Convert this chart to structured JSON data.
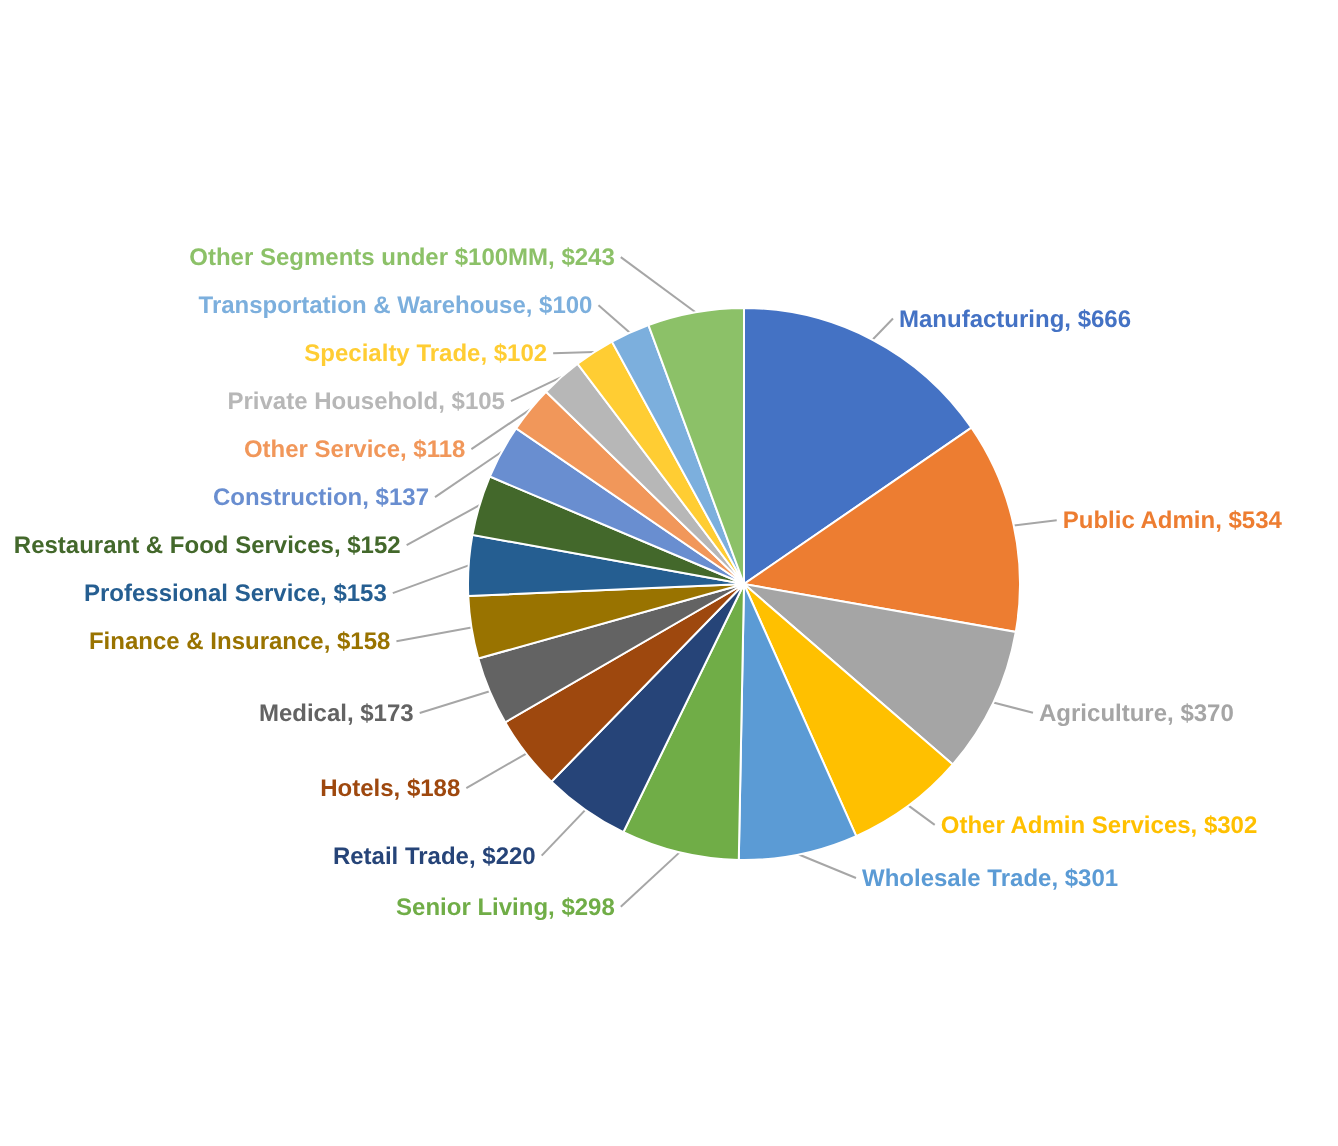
{
  "chart_data": {
    "type": "pie",
    "categories": [
      "Manufacturing",
      "Public Admin",
      "Agriculture",
      "Other Admin Services",
      "Wholesale Trade",
      "Senior Living",
      "Retail Trade",
      "Hotels",
      "Medical",
      "Finance & Insurance",
      "Professional Service",
      "Restaurant & Food Services",
      "Construction",
      "Other Service",
      "Private Household",
      "Specialty Trade",
      "Transportation & Warehouse",
      "Other Segments under $100MM"
    ],
    "values": [
      666,
      534,
      370,
      302,
      301,
      298,
      220,
      188,
      173,
      158,
      153,
      152,
      137,
      118,
      105,
      102,
      100,
      243
    ],
    "value_labels": [
      "$666",
      "$534",
      "$370",
      "$302",
      "$301",
      "$298",
      "$220",
      "$188",
      "$173",
      "$158",
      "$153",
      "$152",
      "$137",
      "$118",
      "$105",
      "$102",
      "$100",
      "$243"
    ],
    "colors": [
      "#4472c4",
      "#ed7d31",
      "#a5a5a5",
      "#ffc000",
      "#5b9bd5",
      "#70ad47",
      "#264478",
      "#9e480e",
      "#636363",
      "#997300",
      "#255e91",
      "#43682b",
      "#698ed0",
      "#f1975a",
      "#b7b7b7",
      "#ffcd33",
      "#7cafdd",
      "#8cc168"
    ]
  }
}
